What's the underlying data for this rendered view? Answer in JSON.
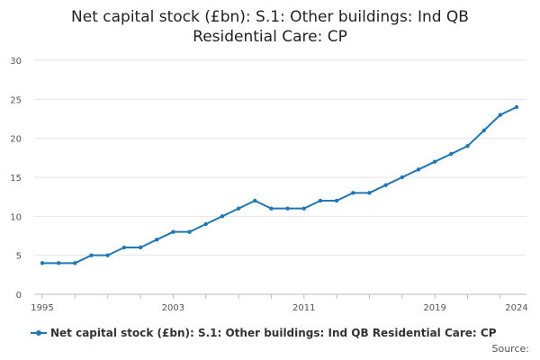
{
  "chart_data": {
    "type": "line",
    "title": "Net capital stock (£bn): S.1: Other buildings: Ind QB Residential Care: CP",
    "title_lines": [
      "Net capital stock (£bn): S.1: Other buildings: Ind QB",
      "Residential Care: CP"
    ],
    "xlabel": "",
    "ylabel": "",
    "x": [
      1995,
      1996,
      1997,
      1998,
      1999,
      2000,
      2001,
      2002,
      2003,
      2004,
      2005,
      2006,
      2007,
      2008,
      2009,
      2010,
      2011,
      2012,
      2013,
      2014,
      2015,
      2016,
      2017,
      2018,
      2019,
      2020,
      2021,
      2022,
      2023,
      2024
    ],
    "series": [
      {
        "name": "Net capital stock (£bn): S.1: Other buildings: Ind QB Residential Care: CP",
        "values": [
          4,
          4,
          4,
          5,
          5,
          6,
          6,
          7,
          8,
          8,
          9,
          10,
          11,
          12,
          11,
          11,
          11,
          12,
          12,
          13,
          13,
          14,
          15,
          16,
          17,
          18,
          19,
          21,
          23,
          24
        ],
        "color": "#1f77b4"
      }
    ],
    "xlim": [
      1995,
      2024
    ],
    "ylim": [
      0,
      30
    ],
    "xticks": [
      "1995",
      "2003",
      "2011",
      "2019",
      "2024"
    ],
    "yticks": [
      "0",
      "5",
      "10",
      "15",
      "20",
      "25",
      "30"
    ],
    "grid": "horizontal",
    "legend": "bottom"
  },
  "footer": {
    "source_label": "Source:"
  }
}
